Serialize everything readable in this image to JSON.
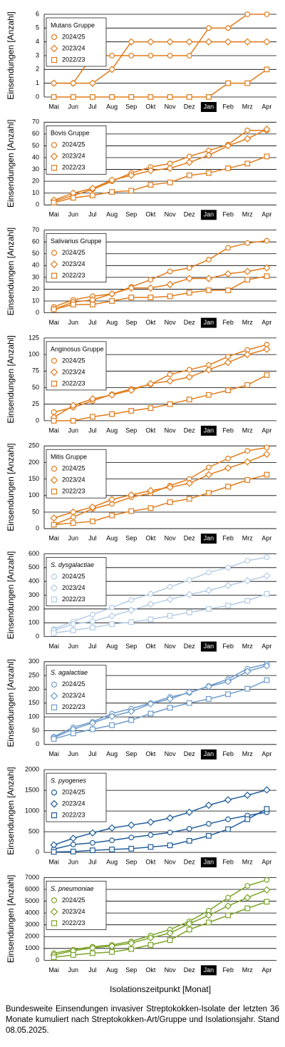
{
  "chart_data": [
    {
      "type": "line",
      "title": "Mutans Gruppe",
      "italic": false,
      "y_label": "Einsendungen [Anzahl]",
      "categories": [
        "Mai",
        "Jun",
        "Jul",
        "Aug",
        "Sep",
        "Okt",
        "Nov",
        "Dez",
        "Jan",
        "Feb",
        "Mrz",
        "Apr"
      ],
      "highlight": 8,
      "ylim": [
        0,
        6
      ],
      "yticks": [
        0,
        1,
        2,
        3,
        4,
        5,
        6
      ],
      "grid": true,
      "series": [
        {
          "name": "2024/25",
          "color": "#e07b1a",
          "marker": "circle",
          "values": [
            1,
            1,
            3,
            3,
            3,
            3,
            3,
            3,
            5,
            5,
            6,
            6
          ]
        },
        {
          "name": "2023/24",
          "color": "#e07b1a",
          "marker": "diamond",
          "values": [
            1,
            1,
            1,
            2,
            4,
            4,
            4,
            4,
            4,
            4,
            4,
            4
          ]
        },
        {
          "name": "2022/23",
          "color": "#e07b1a",
          "marker": "square",
          "values": [
            0,
            0,
            0,
            0,
            0,
            0,
            0,
            0,
            0,
            1,
            1,
            2
          ]
        }
      ]
    },
    {
      "type": "line",
      "title": "Bovis Gruppe",
      "italic": false,
      "y_label": "Einsendungen [Anzahl]",
      "categories": [
        "Mai",
        "Jun",
        "Jul",
        "Aug",
        "Sep",
        "Okt",
        "Nov",
        "Dez",
        "Jan",
        "Feb",
        "Mrz",
        "Apr"
      ],
      "highlight": 8,
      "ylim": [
        0,
        70
      ],
      "yticks": [
        0,
        10,
        20,
        30,
        40,
        50,
        60,
        70
      ],
      "grid": true,
      "series": [
        {
          "name": "2024/25",
          "color": "#e07b1a",
          "marker": "circle",
          "values": [
            3,
            8,
            13,
            20,
            27,
            32,
            35,
            41,
            46,
            51,
            63,
            63
          ]
        },
        {
          "name": "2023/24",
          "color": "#e07b1a",
          "marker": "diamond",
          "values": [
            4,
            10,
            14,
            21,
            25,
            29,
            31,
            36,
            42,
            50,
            56,
            64
          ]
        },
        {
          "name": "2022/23",
          "color": "#e07b1a",
          "marker": "square",
          "values": [
            2,
            6,
            8,
            11,
            12,
            17,
            19,
            25,
            27,
            31,
            35,
            41
          ]
        }
      ]
    },
    {
      "type": "line",
      "title": "Salivarius Gruppe",
      "italic": false,
      "y_label": "Einsendungen [Anzahl]",
      "categories": [
        "Mai",
        "Jun",
        "Jul",
        "Aug",
        "Sep",
        "Okt",
        "Nov",
        "Dez",
        "Jan",
        "Feb",
        "Mrz",
        "Apr"
      ],
      "highlight": 8,
      "ylim": [
        0,
        70
      ],
      "yticks": [
        0,
        10,
        20,
        30,
        40,
        50,
        60,
        70
      ],
      "grid": true,
      "series": [
        {
          "name": "2024/25",
          "color": "#e07b1a",
          "marker": "circle",
          "values": [
            5,
            11,
            14,
            16,
            22,
            28,
            35,
            38,
            45,
            55,
            59,
            61
          ]
        },
        {
          "name": "2023/24",
          "color": "#e07b1a",
          "marker": "diamond",
          "values": [
            3,
            9,
            11,
            16,
            21,
            21,
            24,
            29,
            29,
            33,
            35,
            38
          ]
        },
        {
          "name": "2022/23",
          "color": "#e07b1a",
          "marker": "square",
          "values": [
            3,
            7,
            7,
            10,
            13,
            13,
            14,
            17,
            19,
            19,
            28,
            31
          ]
        }
      ]
    },
    {
      "type": "line",
      "title": "Anginosus Gruppe",
      "italic": false,
      "y_label": "Einsendungen [Anzahl]",
      "categories": [
        "Mai",
        "Jun",
        "Jul",
        "Aug",
        "Sep",
        "Okt",
        "Nov",
        "Dez",
        "Jan",
        "Feb",
        "Mrz",
        "Apr"
      ],
      "highlight": 8,
      "ylim": [
        0,
        125
      ],
      "yticks": [
        0,
        25,
        50,
        75,
        100,
        125
      ],
      "grid": true,
      "series": [
        {
          "name": "2024/25",
          "color": "#e07b1a",
          "marker": "circle",
          "values": [
            13,
            20,
            30,
            40,
            48,
            55,
            70,
            77,
            84,
            97,
            107,
            115
          ]
        },
        {
          "name": "2023/24",
          "color": "#e07b1a",
          "marker": "diamond",
          "values": [
            5,
            23,
            33,
            39,
            46,
            56,
            60,
            66,
            77,
            88,
            100,
            108
          ]
        },
        {
          "name": "2022/23",
          "color": "#e07b1a",
          "marker": "square",
          "values": [
            0,
            0,
            6,
            10,
            15,
            19,
            25,
            32,
            39,
            46,
            54,
            69
          ]
        }
      ]
    },
    {
      "type": "line",
      "title": "Mitis Gruppe",
      "italic": false,
      "y_label": "Einsendungen [Anzahl]",
      "categories": [
        "Mai",
        "Jun",
        "Jul",
        "Aug",
        "Sep",
        "Okt",
        "Nov",
        "Dez",
        "Jan",
        "Feb",
        "Mrz",
        "Apr"
      ],
      "highlight": 8,
      "ylim": [
        0,
        250
      ],
      "yticks": [
        0,
        50,
        100,
        150,
        200,
        250
      ],
      "grid": true,
      "series": [
        {
          "name": "2024/25",
          "color": "#e07b1a",
          "marker": "circle",
          "values": [
            12,
            35,
            60,
            75,
            95,
            107,
            130,
            150,
            185,
            212,
            235,
            245
          ]
        },
        {
          "name": "2023/24",
          "color": "#e07b1a",
          "marker": "diamond",
          "values": [
            32,
            50,
            65,
            88,
            102,
            115,
            125,
            137,
            163,
            183,
            202,
            225
          ]
        },
        {
          "name": "2022/23",
          "color": "#e07b1a",
          "marker": "square",
          "values": [
            12,
            17,
            22,
            40,
            53,
            62,
            80,
            90,
            108,
            127,
            147,
            163
          ]
        }
      ]
    },
    {
      "type": "line",
      "title": "S. dysgalactiae",
      "italic": true,
      "y_label": "Einsendungen [Anzahl]",
      "categories": [
        "Mai",
        "Jun",
        "Jul",
        "Aug",
        "Sep",
        "Okt",
        "Nov",
        "Dez",
        "Jan",
        "Feb",
        "Mrz",
        "Apr"
      ],
      "highlight": 8,
      "ylim": [
        0,
        600
      ],
      "yticks": [
        0,
        100,
        200,
        300,
        400,
        500,
        600
      ],
      "grid": true,
      "series": [
        {
          "name": "2024/25",
          "color": "#b4cce6",
          "marker": "circle",
          "values": [
            55,
            110,
            160,
            210,
            265,
            310,
            360,
            410,
            465,
            500,
            550,
            575
          ]
        },
        {
          "name": "2023/24",
          "color": "#b4cce6",
          "marker": "diamond",
          "values": [
            45,
            90,
            110,
            150,
            190,
            235,
            270,
            305,
            335,
            370,
            405,
            440
          ]
        },
        {
          "name": "2022/23",
          "color": "#b4cce6",
          "marker": "square",
          "values": [
            25,
            45,
            65,
            90,
            105,
            125,
            150,
            175,
            200,
            225,
            260,
            310
          ]
        }
      ]
    },
    {
      "type": "line",
      "title": "S. agalactiae",
      "italic": true,
      "y_label": "Einsendungen [Anzahl]",
      "categories": [
        "Mai",
        "Jun",
        "Jul",
        "Aug",
        "Sep",
        "Okt",
        "Nov",
        "Dez",
        "Jan",
        "Feb",
        "Mrz",
        "Apr"
      ],
      "highlight": 8,
      "ylim": [
        0,
        300
      ],
      "yticks": [
        0,
        50,
        100,
        150,
        200,
        250,
        300
      ],
      "grid": true,
      "series": [
        {
          "name": "2024/25",
          "color": "#6f9ccb",
          "marker": "circle",
          "values": [
            28,
            62,
            82,
            112,
            130,
            150,
            172,
            187,
            212,
            237,
            275,
            292
          ]
        },
        {
          "name": "2023/24",
          "color": "#6f9ccb",
          "marker": "diamond",
          "values": [
            25,
            55,
            78,
            102,
            120,
            147,
            165,
            190,
            210,
            228,
            265,
            285
          ]
        },
        {
          "name": "2022/23",
          "color": "#6f9ccb",
          "marker": "square",
          "values": [
            20,
            40,
            55,
            70,
            88,
            112,
            133,
            150,
            165,
            182,
            202,
            233
          ]
        }
      ]
    },
    {
      "type": "line",
      "title": "S. pyogenes",
      "italic": true,
      "y_label": "Einsendungen [Anzahl]",
      "categories": [
        "Mai",
        "Jun",
        "Jul",
        "Aug",
        "Sep",
        "Okt",
        "Nov",
        "Dez",
        "Jan",
        "Feb",
        "Mrz",
        "Apr"
      ],
      "highlight": 8,
      "ylim": [
        0,
        2000
      ],
      "yticks": [
        0,
        500,
        1000,
        1500,
        2000
      ],
      "grid": true,
      "series": [
        {
          "name": "2024/25",
          "color": "#1f5c99",
          "marker": "circle",
          "values": [
            80,
            190,
            230,
            290,
            360,
            420,
            480,
            570,
            690,
            800,
            890,
            970
          ]
        },
        {
          "name": "2023/24",
          "color": "#1f5c99",
          "marker": "diamond",
          "values": [
            180,
            340,
            470,
            590,
            660,
            730,
            830,
            970,
            1140,
            1270,
            1380,
            1510
          ]
        },
        {
          "name": "2022/23",
          "color": "#1f5c99",
          "marker": "square",
          "values": [
            10,
            20,
            50,
            70,
            90,
            130,
            170,
            280,
            400,
            560,
            800,
            1050
          ]
        }
      ]
    },
    {
      "type": "line",
      "title": "S. pneumoniae",
      "italic": true,
      "y_label": "Einsendungen [Anzahl]",
      "categories": [
        "Mai",
        "Jun",
        "Jul",
        "Aug",
        "Sep",
        "Okt",
        "Nov",
        "Dez",
        "Jan",
        "Feb",
        "Mrz",
        "Apr"
      ],
      "highlight": 8,
      "ylim": [
        0,
        7000
      ],
      "yticks": [
        0,
        1000,
        2000,
        3000,
        4000,
        5000,
        6000,
        7000
      ],
      "grid": true,
      "series": [
        {
          "name": "2024/25",
          "color": "#7ba428",
          "marker": "circle",
          "values": [
            600,
            900,
            1150,
            1300,
            1600,
            2100,
            2600,
            3300,
            4200,
            5300,
            6300,
            6800
          ]
        },
        {
          "name": "2023/24",
          "color": "#7ba428",
          "marker": "diamond",
          "values": [
            450,
            800,
            1050,
            1200,
            1450,
            1900,
            2300,
            3100,
            3800,
            4600,
            5300,
            5950
          ]
        },
        {
          "name": "2022/23",
          "color": "#7ba428",
          "marker": "square",
          "values": [
            250,
            450,
            600,
            700,
            950,
            1300,
            1700,
            2600,
            3200,
            3800,
            4400,
            4950
          ]
        }
      ]
    }
  ],
  "x_label": "Isolationszeitpunkt [Monat]",
  "caption": "Bundesweite Einsendungen invasiver Streptokokken-Isolate der letzten 36 Monate kumuliert nach Streptokokken-Art/Gruppe und Isolationsjahr. Stand 08.05.2025."
}
